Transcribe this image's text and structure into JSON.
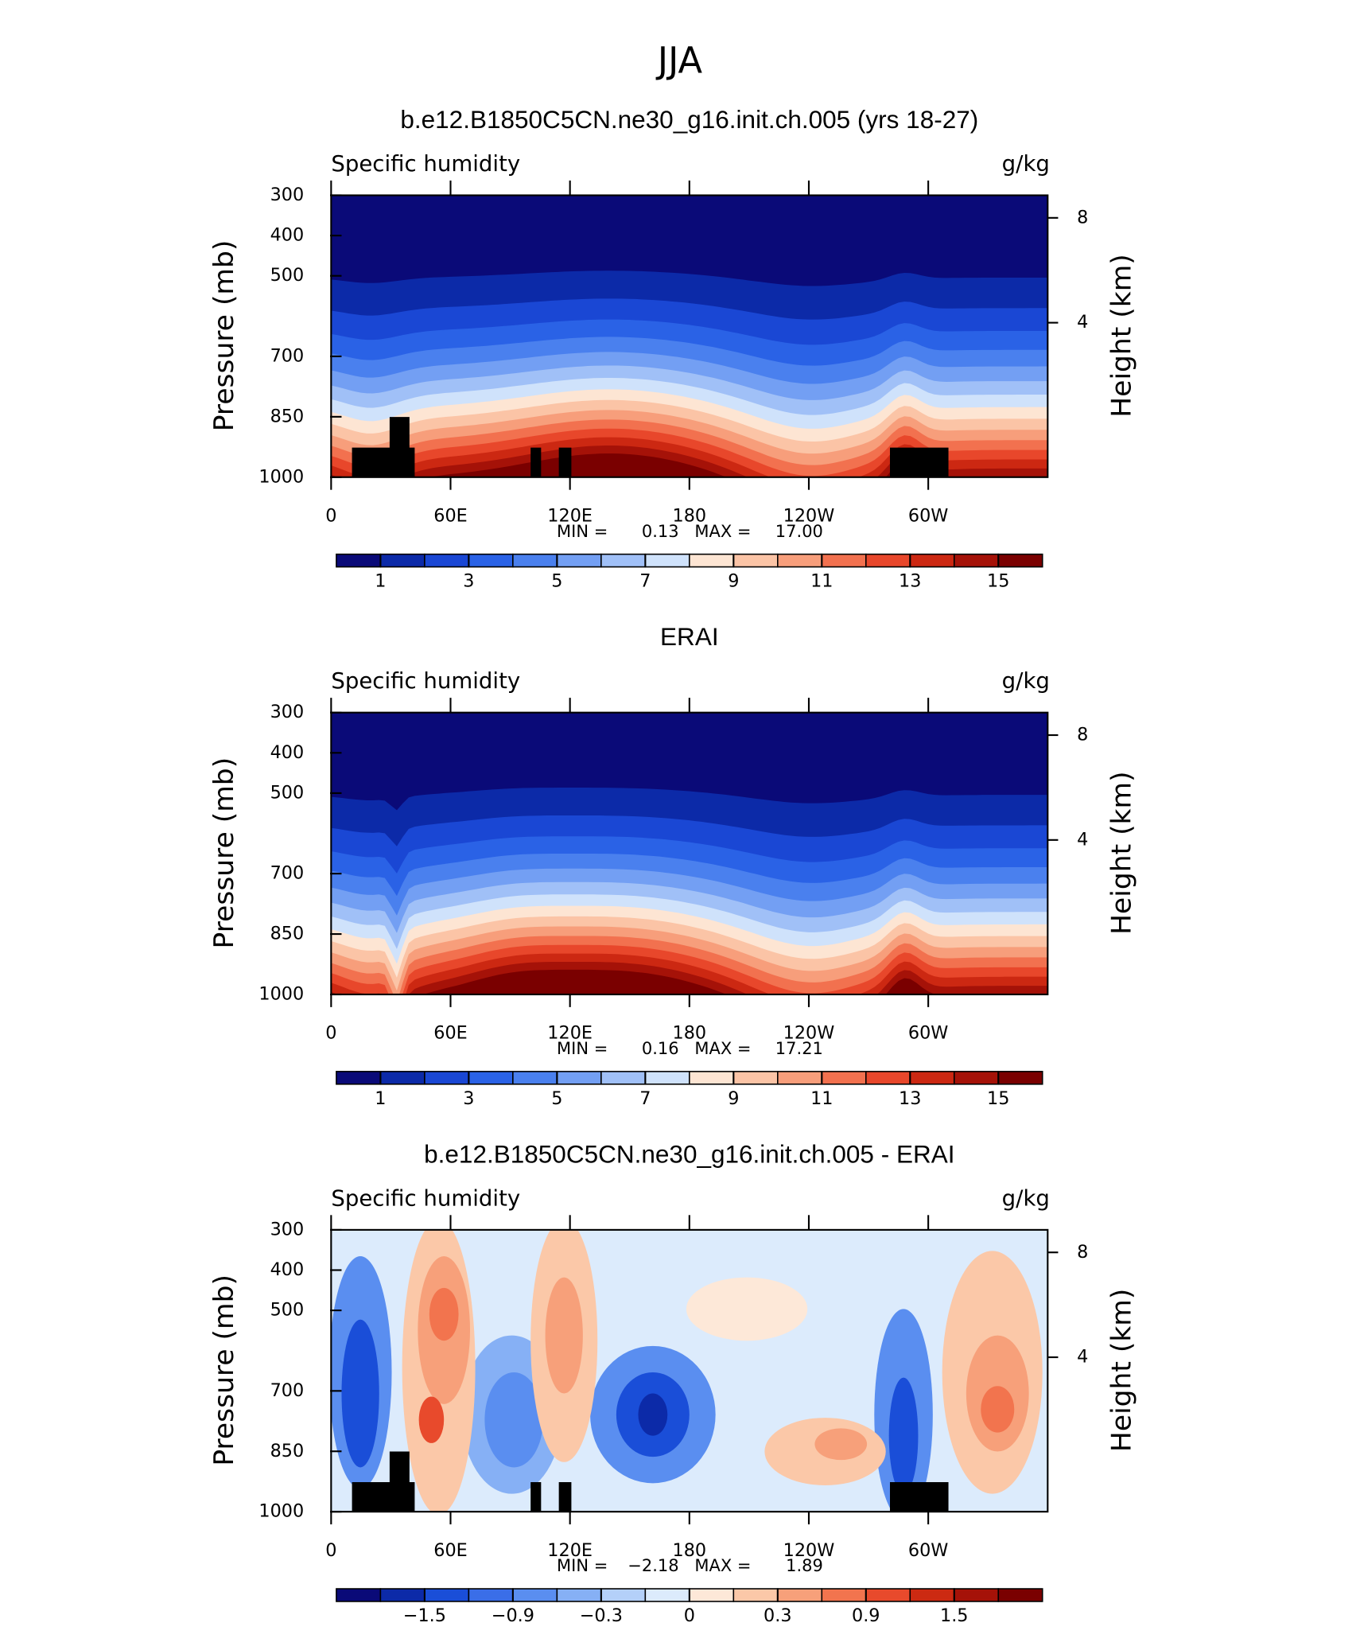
{
  "title": "JJA",
  "panels": [
    {
      "title": "b.e12.B1850C5CN.ne30_g16.init.ch.005 (yrs 18-27)",
      "left_string": "Specific humidity",
      "right_string": "g/kg",
      "y_label": "Pressure (mb)",
      "y2_label": "Height (km)",
      "ylim": [
        300,
        1000
      ],
      "yticks": [
        300,
        400,
        500,
        700,
        850,
        1000
      ],
      "y2ticks": [
        8,
        4
      ],
      "xlim": [
        0,
        360
      ],
      "xticks": [
        0,
        {
          "value": 60,
          "label": "60E"
        },
        {
          "value": 120,
          "label": "120E"
        },
        180,
        {
          "value": 240,
          "label": "120W"
        },
        {
          "value": 300,
          "label": "60W"
        }
      ],
      "min_text": "MIN =",
      "min": 0.13,
      "max_text": "MAX =",
      "max": {
        "value": 17,
        "label": "17.00"
      },
      "colorbar": {
        "levels": [
          1,
          2,
          3,
          4,
          5,
          6,
          7,
          8,
          9,
          10,
          11,
          12,
          13,
          14,
          15
        ],
        "ticks": [
          1,
          3,
          5,
          7,
          9,
          11,
          13,
          15
        ],
        "colors": [
          "#0a0a78",
          "#0c2aa8",
          "#1a47d4",
          "#2a62e6",
          "#4a80ee",
          "#739ff3",
          "#a0c0f7",
          "#cfe2fb",
          "#fde5d3",
          "#fbc4a6",
          "#f79e7b",
          "#f2714f",
          "#e8472b",
          "#cc2812",
          "#a51208",
          "#7a0000"
        ]
      }
    },
    {
      "title": "ERAI",
      "left_string": "Specific humidity",
      "right_string": "g/kg",
      "y_label": "Pressure (mb)",
      "y2_label": "Height (km)",
      "ylim": [
        300,
        1000
      ],
      "yticks": [
        300,
        400,
        500,
        700,
        850,
        1000
      ],
      "y2ticks": [
        8,
        4
      ],
      "xlim": [
        0,
        360
      ],
      "xticks": [
        0,
        {
          "value": 60,
          "label": "60E"
        },
        {
          "value": 120,
          "label": "120E"
        },
        180,
        {
          "value": 240,
          "label": "120W"
        },
        {
          "value": 300,
          "label": "60W"
        }
      ],
      "min_text": "MIN =",
      "min": 0.16,
      "max_text": "MAX =",
      "max": 17.21,
      "colorbar": {
        "levels": [
          1,
          2,
          3,
          4,
          5,
          6,
          7,
          8,
          9,
          10,
          11,
          12,
          13,
          14,
          15
        ],
        "ticks": [
          1,
          3,
          5,
          7,
          9,
          11,
          13,
          15
        ],
        "colors": [
          "#0a0a78",
          "#0c2aa8",
          "#1a47d4",
          "#2a62e6",
          "#4a80ee",
          "#739ff3",
          "#a0c0f7",
          "#cfe2fb",
          "#fde5d3",
          "#fbc4a6",
          "#f79e7b",
          "#f2714f",
          "#e8472b",
          "#cc2812",
          "#a51208",
          "#7a0000"
        ]
      }
    },
    {
      "title": "b.e12.B1850C5CN.ne30_g16.init.ch.005 - ERAI",
      "left_string": "Specific humidity",
      "right_string": "g/kg",
      "y_label": "Pressure (mb)",
      "y2_label": "Height (km)",
      "ylim": [
        300,
        1000
      ],
      "yticks": [
        300,
        400,
        500,
        700,
        850,
        1000
      ],
      "y2ticks": [
        8,
        4
      ],
      "xlim": [
        0,
        360
      ],
      "xticks": [
        0,
        {
          "value": 60,
          "label": "60E"
        },
        {
          "value": 120,
          "label": "120E"
        },
        180,
        {
          "value": 240,
          "label": "120W"
        },
        {
          "value": 300,
          "label": "60W"
        }
      ],
      "min_text": "MIN =",
      "min": {
        "value": -2.18,
        "label": "−2.18"
      },
      "max_text": "MAX =",
      "max": 1.89,
      "colorbar": {
        "levels": [
          -1.8,
          -1.5,
          -1.2,
          -0.9,
          -0.6,
          -0.3,
          -0.1,
          0,
          0.1,
          0.3,
          0.6,
          0.9,
          1.2,
          1.5,
          1.8
        ],
        "ticks": [
          {
            "value": -1.5,
            "label": "−1.5"
          },
          {
            "value": -0.9,
            "label": "−0.9"
          },
          {
            "value": -0.3,
            "label": "−0.3"
          },
          0,
          0.3,
          0.9,
          1.5
        ],
        "colors": [
          "#0a0a78",
          "#0c2aa8",
          "#1a4ed8",
          "#3a6ee8",
          "#5a8ef0",
          "#86b0f5",
          "#b4d0f9",
          "#dcebfc",
          "#fde8d8",
          "#fbc8a8",
          "#f7a07a",
          "#f2744e",
          "#e84a2c",
          "#cc2a12",
          "#a51208",
          "#7a0000"
        ]
      }
    }
  ]
}
